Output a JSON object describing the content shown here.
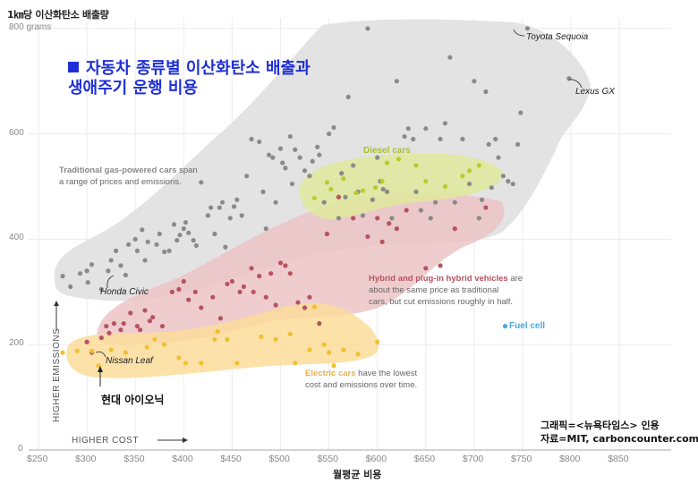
{
  "chart_data": {
    "type": "scatter",
    "title": "■ 자동차 종류별 이산화탄소 배출과 생애주기 운행 비용",
    "title_lines": [
      "자동차 종류별 이산화탄소 배출과",
      "생애주기 운행 비용"
    ],
    "ylabel": "1㎞당 이산화탄소 배출량",
    "xlabel": "월평균 비용",
    "ylim": [
      0,
      800
    ],
    "xlim": [
      250,
      900
    ],
    "grid": true,
    "y_ticks": [
      "0",
      "200",
      "400",
      "600",
      "800 grams"
    ],
    "y_tick_values": [
      0,
      200,
      400,
      600,
      800
    ],
    "x_ticks": [
      "$250",
      "$300",
      "$350",
      "$400",
      "$450",
      "$500",
      "$550",
      "$600",
      "$650",
      "$700",
      "$750",
      "$800",
      "$850"
    ],
    "x_tick_values": [
      250,
      300,
      350,
      400,
      450,
      500,
      550,
      600,
      650,
      700,
      750,
      800,
      850
    ],
    "axis_hints": {
      "x": "HIGHER COST",
      "y": "HIGHER EMISSIONS"
    },
    "legend_position": "inline annotations",
    "series": [
      {
        "name": "Traditional gas-powered cars",
        "color": "#8a8a8a",
        "region_color": "#e3e3e3",
        "points": [
          [
            275,
            330
          ],
          [
            283,
            310
          ],
          [
            293,
            335
          ],
          [
            300,
            340
          ],
          [
            301,
            318
          ],
          [
            305,
            352
          ],
          [
            315,
            305
          ],
          [
            322,
            340
          ],
          [
            325,
            360
          ],
          [
            330,
            378
          ],
          [
            335,
            350
          ],
          [
            340,
            332
          ],
          [
            343,
            390
          ],
          [
            350,
            400
          ],
          [
            352,
            378
          ],
          [
            357,
            418
          ],
          [
            360,
            360
          ],
          [
            363,
            395
          ],
          [
            372,
            390
          ],
          [
            375,
            410
          ],
          [
            380,
            376
          ],
          [
            385,
            378
          ],
          [
            390,
            428
          ],
          [
            393,
            398
          ],
          [
            396,
            408
          ],
          [
            400,
            420
          ],
          [
            402,
            432
          ],
          [
            405,
            412
          ],
          [
            410,
            398
          ],
          [
            413,
            388
          ],
          [
            418,
            508
          ],
          [
            425,
            445
          ],
          [
            428,
            460
          ],
          [
            432,
            410
          ],
          [
            437,
            460
          ],
          [
            440,
            470
          ],
          [
            443,
            385
          ],
          [
            448,
            440
          ],
          [
            452,
            462
          ],
          [
            455,
            475
          ],
          [
            460,
            445
          ],
          [
            465,
            520
          ],
          [
            470,
            590
          ],
          [
            478,
            585
          ],
          [
            482,
            490
          ],
          [
            485,
            420
          ],
          [
            488,
            560
          ],
          [
            492,
            555
          ],
          [
            495,
            470
          ],
          [
            500,
            572
          ],
          [
            502,
            545
          ],
          [
            505,
            535
          ],
          [
            510,
            595
          ],
          [
            512,
            505
          ],
          [
            515,
            570
          ],
          [
            520,
            555
          ],
          [
            525,
            530
          ],
          [
            530,
            520
          ],
          [
            533,
            548
          ],
          [
            538,
            575
          ],
          [
            540,
            560
          ],
          [
            545,
            470
          ],
          [
            550,
            600
          ],
          [
            555,
            612
          ],
          [
            560,
            440
          ],
          [
            563,
            525
          ],
          [
            567,
            480
          ],
          [
            570,
            670
          ],
          [
            575,
            540
          ],
          [
            580,
            490
          ],
          [
            585,
            445
          ],
          [
            590,
            800
          ],
          [
            595,
            475
          ],
          [
            600,
            555
          ],
          [
            603,
            510
          ],
          [
            606,
            495
          ],
          [
            610,
            490
          ],
          [
            615,
            440
          ],
          [
            620,
            700
          ],
          [
            628,
            595
          ],
          [
            632,
            610
          ],
          [
            637,
            590
          ],
          [
            640,
            490
          ],
          [
            645,
            455
          ],
          [
            650,
            610
          ],
          [
            655,
            440
          ],
          [
            660,
            470
          ],
          [
            665,
            590
          ],
          [
            670,
            620
          ],
          [
            675,
            745
          ],
          [
            680,
            470
          ],
          [
            688,
            590
          ],
          [
            695,
            505
          ],
          [
            700,
            700
          ],
          [
            705,
            440
          ],
          [
            708,
            475
          ],
          [
            712,
            680
          ],
          [
            715,
            580
          ],
          [
            718,
            498
          ],
          [
            722,
            590
          ],
          [
            725,
            555
          ],
          [
            730,
            520
          ],
          [
            735,
            510
          ],
          [
            740,
            505
          ],
          [
            745,
            580
          ],
          [
            748,
            640
          ],
          [
            755,
            800
          ],
          [
            798,
            705
          ]
        ]
      },
      {
        "name": "Diesel cars",
        "color": "#b6cc2e",
        "region_color": "#e2eaa4",
        "points": [
          [
            535,
            478
          ],
          [
            548,
            508
          ],
          [
            552,
            495
          ],
          [
            565,
            515
          ],
          [
            578,
            488
          ],
          [
            585,
            492
          ],
          [
            598,
            498
          ],
          [
            605,
            510
          ],
          [
            610,
            545
          ],
          [
            622,
            552
          ],
          [
            640,
            540
          ],
          [
            650,
            510
          ],
          [
            670,
            500
          ],
          [
            688,
            520
          ],
          [
            695,
            530
          ],
          [
            705,
            540
          ]
        ]
      },
      {
        "name": "Hybrid and plug-in hybrid vehicles",
        "color": "#b65360",
        "region_color": "#ecc4c6",
        "points": [
          [
            300,
            205
          ],
          [
            305,
            185
          ],
          [
            315,
            213
          ],
          [
            320,
            235
          ],
          [
            323,
            222
          ],
          [
            328,
            240
          ],
          [
            335,
            228
          ],
          [
            338,
            240
          ],
          [
            345,
            260
          ],
          [
            352,
            235
          ],
          [
            355,
            228
          ],
          [
            360,
            265
          ],
          [
            365,
            245
          ],
          [
            368,
            252
          ],
          [
            378,
            235
          ],
          [
            388,
            300
          ],
          [
            395,
            305
          ],
          [
            400,
            320
          ],
          [
            405,
            285
          ],
          [
            412,
            300
          ],
          [
            418,
            270
          ],
          [
            430,
            290
          ],
          [
            438,
            250
          ],
          [
            445,
            315
          ],
          [
            450,
            320
          ],
          [
            458,
            300
          ],
          [
            462,
            310
          ],
          [
            470,
            345
          ],
          [
            472,
            300
          ],
          [
            478,
            330
          ],
          [
            485,
            290
          ],
          [
            490,
            335
          ],
          [
            495,
            275
          ],
          [
            500,
            355
          ],
          [
            505,
            350
          ],
          [
            510,
            335
          ],
          [
            518,
            280
          ],
          [
            525,
            270
          ],
          [
            530,
            290
          ],
          [
            540,
            240
          ],
          [
            548,
            410
          ],
          [
            560,
            480
          ],
          [
            575,
            440
          ],
          [
            590,
            405
          ],
          [
            600,
            440
          ],
          [
            605,
            395
          ],
          [
            612,
            430
          ],
          [
            620,
            420
          ],
          [
            630,
            455
          ],
          [
            650,
            345
          ],
          [
            665,
            350
          ],
          [
            680,
            420
          ],
          [
            712,
            460
          ]
        ]
      },
      {
        "name": "Electric cars",
        "color": "#f0c030",
        "region_color": "#fbe0a4",
        "points": [
          [
            275,
            185
          ],
          [
            290,
            188
          ],
          [
            305,
            188
          ],
          [
            312,
            160
          ],
          [
            325,
            190
          ],
          [
            340,
            185
          ],
          [
            362,
            195
          ],
          [
            370,
            210
          ],
          [
            380,
            200
          ],
          [
            395,
            175
          ],
          [
            402,
            165
          ],
          [
            418,
            165
          ],
          [
            432,
            210
          ],
          [
            435,
            225
          ],
          [
            445,
            210
          ],
          [
            455,
            165
          ],
          [
            480,
            215
          ],
          [
            495,
            210
          ],
          [
            510,
            220
          ],
          [
            515,
            165
          ],
          [
            530,
            190
          ],
          [
            535,
            272
          ],
          [
            545,
            200
          ],
          [
            550,
            185
          ],
          [
            555,
            160
          ],
          [
            565,
            190
          ],
          [
            580,
            182
          ],
          [
            600,
            205
          ]
        ]
      },
      {
        "name": "Fuel cell",
        "color": "#4aaad8",
        "points": [
          [
            732,
            235
          ]
        ]
      }
    ],
    "annotations": [
      {
        "label": "Toyota Sequoia",
        "point": [
          755,
          800
        ]
      },
      {
        "label": "Lexus GX",
        "point": [
          798,
          705
        ]
      },
      {
        "label": "Honda Civic",
        "point": [
          322,
          340
        ]
      },
      {
        "label": "Nissan Leaf",
        "point": [
          305,
          188
        ]
      },
      {
        "label": "현대 아이오닉",
        "point": [
          312,
          160
        ]
      }
    ],
    "notes": [
      {
        "bold": "Traditional gas-powered cars",
        "rest": " span a range of prices and emissions."
      },
      {
        "bold": "Diesel cars",
        "rest": ""
      },
      {
        "bold": "Hybrid and plug-in hybrid vehicles",
        "rest": " are about the same price as traditional cars, but cut emissions roughly in half."
      },
      {
        "bold": "Electric cars",
        "rest": " have the lowest cost and emissions over time."
      },
      {
        "bold": "Fuel cell",
        "rest": ""
      }
    ]
  },
  "ui": {
    "y_axis_title": "1㎞당 이산화탄소 배출량",
    "title_line1": "자동차 종류별 이산화탄소 배출과",
    "title_line2": "생애주기 운행 비용",
    "x_axis_title": "월평균 비용",
    "higher_cost": "HIGHER COST",
    "higher_emissions": "HIGHER EMISSIONS",
    "gas_note_bold": "Traditional gas-powered cars",
    "gas_note_rest1": " span",
    "gas_note_rest2": "a range of prices and emissions.",
    "diesel_label": "Diesel cars",
    "hybrid_note_bold": "Hybrid and plug-in hybrid vehicles",
    "hybrid_note_rest1": " are",
    "hybrid_note_rest2": "about the same price as traditional",
    "hybrid_note_rest3": "cars, but cut emissions roughly in half.",
    "electric_note_bold": "Electric cars",
    "electric_note_rest1": " have the lowest",
    "electric_note_rest2": "cost and emissions over time.",
    "fuel_cell_label": "Fuel cell",
    "toyota_label": "Toyota Sequoia",
    "lexus_label": "Lexus GX",
    "honda_label": "Honda Civic",
    "nissan_label": "Nissan Leaf",
    "ioniq_label": "현대 아이오닉",
    "credit_line1": "그래픽=<뉴욕타임스> 인용",
    "credit_line2": "자료=MIT, carboncounter.com",
    "colors": {
      "title": "#1f2fd6",
      "gas": "#8a8a8a",
      "diesel": "#b6cc2e",
      "hybrid": "#b65360",
      "electric": "#f0c030",
      "fuel_cell": "#4aaad8"
    }
  }
}
